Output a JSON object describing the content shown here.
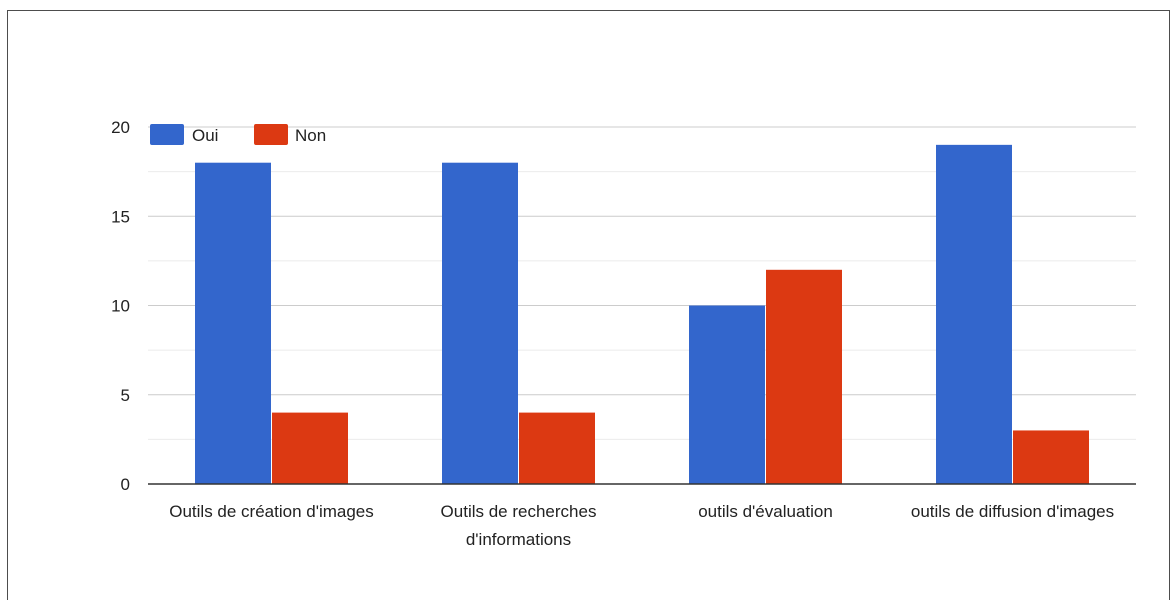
{
  "chart_data": {
    "type": "bar",
    "title": "",
    "xlabel": "",
    "ylabel": "",
    "categories": [
      [
        "Outils de création d'images"
      ],
      [
        "Outils de recherches",
        "d'informations"
      ],
      [
        "outils d'évaluation"
      ],
      [
        "outils de diffusion d'images"
      ]
    ],
    "series": [
      {
        "name": "Oui",
        "color": "#3366cc",
        "values": [
          18,
          18,
          10,
          19
        ]
      },
      {
        "name": "Non",
        "color": "#dc3912",
        "values": [
          4,
          4,
          12,
          3
        ]
      }
    ],
    "ylim": [
      0,
      20
    ],
    "yticks": [
      "0",
      "5",
      "10",
      "15",
      "20"
    ],
    "grid": true,
    "legend_position": "top-left"
  }
}
